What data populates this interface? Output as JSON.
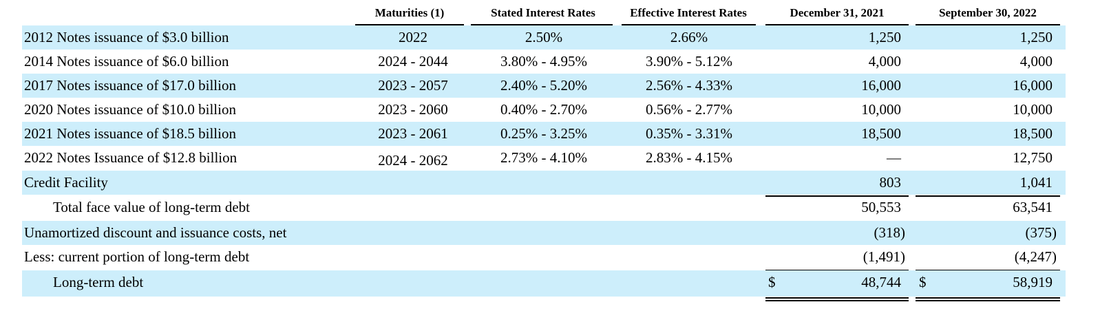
{
  "headers": {
    "maturities": "Maturities (1)",
    "stated": "Stated Interest Rates",
    "effective": "Effective Interest Rates",
    "col1": "December 31, 2021",
    "col2": "September 30, 2022"
  },
  "rows": [
    {
      "label": "2012 Notes issuance of $3.0 billion",
      "maturities": "2022",
      "stated": "2.50%",
      "effective": "2.66%",
      "v1": "1,250",
      "v2": "1,250"
    },
    {
      "label": "2014 Notes issuance of $6.0 billion",
      "maturities": "2024 - 2044",
      "stated": "3.80% - 4.95%",
      "effective": "3.90% - 5.12%",
      "v1": "4,000",
      "v2": "4,000"
    },
    {
      "label": "2017 Notes issuance of $17.0 billion",
      "maturities": "2023 - 2057",
      "stated": "2.40% - 5.20%",
      "effective": "2.56% - 4.33%",
      "v1": "16,000",
      "v2": "16,000"
    },
    {
      "label": "2020 Notes issuance of $10.0 billion",
      "maturities": "2023 - 2060",
      "stated": "0.40% - 2.70%",
      "effective": "0.56% - 2.77%",
      "v1": "10,000",
      "v2": "10,000"
    },
    {
      "label": "2021 Notes issuance of $18.5 billion",
      "maturities": "2023 - 2061",
      "stated": "0.25% - 3.25%",
      "effective": "0.35% - 3.31%",
      "v1": "18,500",
      "v2": "18,500"
    },
    {
      "label": "2022 Notes Issuance of $12.8 billion",
      "maturities": "2024 - 2062",
      "stated": "2.73% - 4.10%",
      "effective": "2.83% - 4.15%",
      "v1": "—",
      "v2": "12,750"
    },
    {
      "label": "Credit Facility",
      "v1": "803",
      "v2": "1,041"
    },
    {
      "label": "Total face value of long-term debt",
      "v1": "50,553",
      "v2": "63,541"
    },
    {
      "label": "Unamortized discount and issuance costs, net",
      "v1": "(318)",
      "v2": "(375)"
    },
    {
      "label": "Less: current portion of long-term debt",
      "v1": "(1,491)",
      "v2": "(4,247)"
    },
    {
      "label": "Long-term debt",
      "currency": "$",
      "v1": "48,744",
      "v2": "58,919"
    }
  ]
}
